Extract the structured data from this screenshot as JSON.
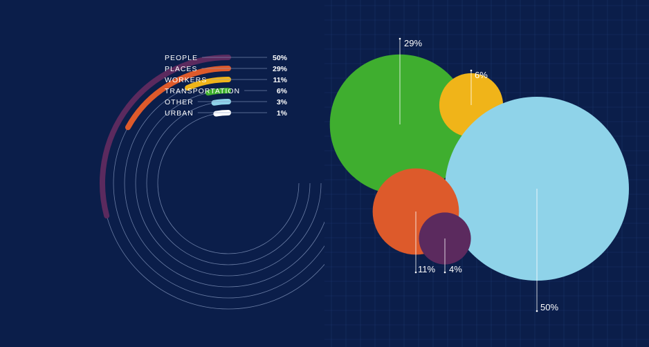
{
  "colors": {
    "background": "#0b1e4a",
    "grid": "#1e3a73",
    "guide_line": "#8b9dc4",
    "text": "#ffffff"
  },
  "chart_data": [
    {
      "type": "radial-bar",
      "title": "",
      "max_value": 100,
      "series": [
        {
          "name": "PEOPLE",
          "value": 50,
          "value_label": "50%",
          "color": "#5b2a5e"
        },
        {
          "name": "PLACES",
          "value": 29,
          "value_label": "29%",
          "color": "#dd5a2b"
        },
        {
          "name": "WORKERS",
          "value": 11,
          "value_label": "11%",
          "color": "#f0b419"
        },
        {
          "name": "TRANSPORTATION",
          "value": 6,
          "value_label": "6%",
          "color": "#3fae2f"
        },
        {
          "name": "OTHER",
          "value": 3,
          "value_label": "3%",
          "color": "#8fd3e9"
        },
        {
          "name": "URBAN",
          "value": 1,
          "value_label": "1%",
          "color": "#ffffff"
        }
      ]
    },
    {
      "type": "bubble",
      "title": "",
      "grid": true,
      "bubbles": [
        {
          "value": 29,
          "label": "29%",
          "color": "#3fae2f"
        },
        {
          "value": 6,
          "label": "6%",
          "color": "#f0b419"
        },
        {
          "value": 50,
          "label": "50%",
          "color": "#8fd3e9"
        },
        {
          "value": 11,
          "label": "11%",
          "color": "#dd5a2b"
        },
        {
          "value": 4,
          "label": "4%",
          "color": "#5b2a5e"
        }
      ]
    }
  ]
}
